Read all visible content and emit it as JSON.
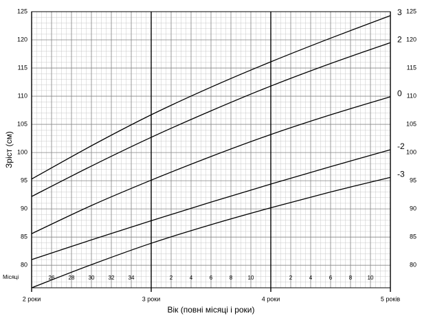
{
  "chart_data": {
    "type": "line",
    "y_label": "Зріст (см)",
    "x_label": "Вік (повні місяці і роки)",
    "months_label": "Місяці",
    "x": [
      24,
      30,
      36,
      42,
      48,
      54,
      60
    ],
    "series": [
      {
        "name": "3",
        "color": "#000000",
        "values": [
          95.3,
          101.2,
          106.7,
          111.6,
          116.1,
          120.3,
          124.3
        ]
      },
      {
        "name": "2",
        "color": "#000000",
        "values": [
          92.2,
          97.6,
          102.7,
          107.4,
          111.8,
          115.8,
          119.5
        ]
      },
      {
        "name": "0",
        "color": "#000000",
        "values": [
          85.6,
          90.6,
          95.1,
          99.3,
          103.2,
          106.7,
          109.9
        ]
      },
      {
        "name": "-2",
        "color": "#000000",
        "values": [
          81.0,
          84.5,
          87.9,
          91.2,
          94.4,
          97.5,
          100.5
        ]
      },
      {
        "name": "-3",
        "color": "#000000",
        "values": [
          76.0,
          80.1,
          83.9,
          87.2,
          90.2,
          93.0,
          95.6
        ]
      }
    ],
    "xlim": [
      24,
      60
    ],
    "ylim": [
      76,
      125
    ],
    "xticks": [
      {
        "value": 24,
        "label": "2 роки"
      },
      26,
      28,
      30,
      32,
      34,
      {
        "value": 36,
        "label": "3 роки"
      },
      {
        "value": 38,
        "label": "2"
      },
      {
        "value": 40,
        "label": "4"
      },
      {
        "value": 42,
        "label": "6"
      },
      {
        "value": 44,
        "label": "8"
      },
      {
        "value": 46,
        "label": "10"
      },
      {
        "value": 48,
        "label": "4 роки"
      },
      {
        "value": 50,
        "label": "2"
      },
      {
        "value": 52,
        "label": "4"
      },
      {
        "value": 54,
        "label": "6"
      },
      {
        "value": 56,
        "label": "8"
      },
      {
        "value": 58,
        "label": "10"
      },
      {
        "value": 60,
        "label": "5 років"
      }
    ],
    "xticks_fix": null,
    "yticks": [
      80,
      85,
      90,
      95,
      100,
      105,
      110,
      115,
      120,
      125
    ],
    "grid": true
  }
}
